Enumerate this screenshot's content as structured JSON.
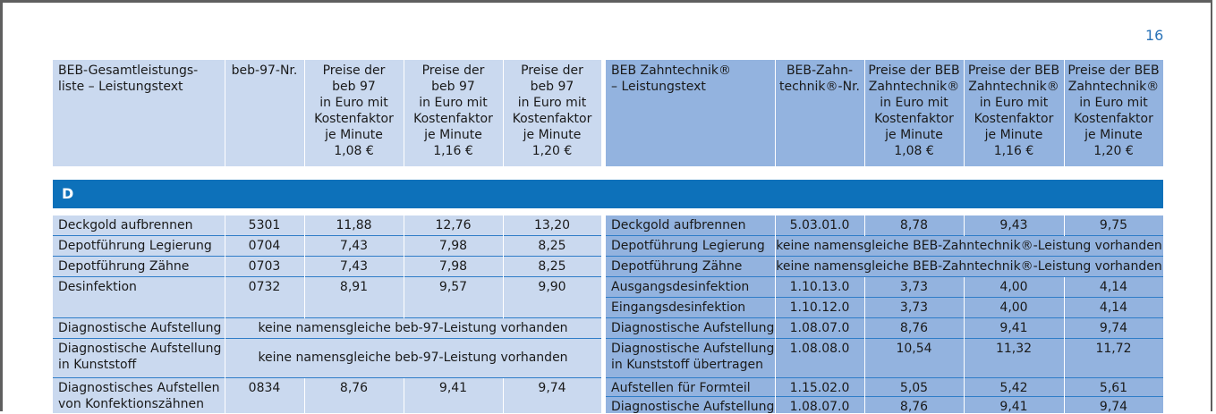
{
  "page_number": "16",
  "left_header": {
    "col1": [
      "BEB-Gesamtleistungs-",
      "liste – Leistungstext"
    ],
    "col2": [
      "beb-97-Nr."
    ],
    "col3": [
      "Preise der",
      "beb 97",
      "in Euro mit",
      "Kostenfaktor",
      "je Minute",
      "1,08 €"
    ],
    "col4": [
      "Preise der",
      "beb 97",
      "in Euro mit",
      "Kostenfaktor",
      "je Minute",
      "1,16 €"
    ],
    "col5": [
      "Preise der",
      "beb 97",
      "in Euro mit",
      "Kostenfaktor",
      "je Minute",
      "1,20 €"
    ]
  },
  "right_header": {
    "col1": [
      "BEB Zahntechnik®",
      "– Leistungstext"
    ],
    "col2": [
      "BEB-Zahn-",
      "technik®-Nr."
    ],
    "col3": [
      "Preise der BEB",
      "Zahntechnik®",
      "in Euro mit",
      "Kostenfaktor",
      "je Minute",
      "1,08 €"
    ],
    "col4": [
      "Preise der BEB",
      "Zahntechnik®",
      "in Euro mit",
      "Kostenfaktor",
      "je Minute",
      "1,16 €"
    ],
    "col5": [
      "Preise der BEB",
      "Zahntechnik®",
      "in Euro mit",
      "Kostenfaktor",
      "je Minute",
      "1,20 €"
    ]
  },
  "section_letter": "D",
  "left_rows": [
    {
      "text": [
        "Deckgold aufbrennen"
      ],
      "nr": "5301",
      "p108": "11,88",
      "p116": "12,76",
      "p120": "13,20"
    },
    {
      "text": [
        "Depotführung Legierung"
      ],
      "nr": "0704",
      "p108": "7,43",
      "p116": "7,98",
      "p120": "8,25"
    },
    {
      "text": [
        "Depotführung Zähne"
      ],
      "nr": "0703",
      "p108": "7,43",
      "p116": "7,98",
      "p120": "8,25"
    },
    {
      "text": [
        "Desinfektion"
      ],
      "nr": "0732",
      "p108": "8,91",
      "p116": "9,57",
      "p120": "9,90"
    },
    {
      "text": [
        "Diagnostische Aufstellung"
      ],
      "note": "keine namensgleiche beb-97-Leistung vorhanden"
    },
    {
      "text": [
        "Diagnostische Aufstellung",
        "in Kunststoff"
      ],
      "note": "keine namensgleiche beb-97-Leistung vorhanden"
    },
    {
      "text": [
        "Diagnostisches Aufstellen",
        "von Konfektionszähnen"
      ],
      "nr": "0834",
      "p108": "8,76",
      "p116": "9,41",
      "p120": "9,74"
    }
  ],
  "right_rows": [
    {
      "text": [
        "Deckgold aufbrennen"
      ],
      "nr": "5.03.01.0",
      "p108": "8,78",
      "p116": "9,43",
      "p120": "9,75"
    },
    {
      "text": [
        "Depotführung Legierung"
      ],
      "note": "keine namensgleiche BEB-Zahntechnik®-Leistung vorhanden"
    },
    {
      "text": [
        "Depotführung Zähne"
      ],
      "note": "keine namensgleiche BEB-Zahntechnik®-Leistung vorhanden"
    },
    {
      "text": [
        "Ausgangsdesinfektion"
      ],
      "nr": "1.10.13.0",
      "p108": "3,73",
      "p116": "4,00",
      "p120": "4,14"
    },
    {
      "text": [
        "Eingangsdesinfektion"
      ],
      "nr": "1.10.12.0",
      "p108": "3,73",
      "p116": "4,00",
      "p120": "4,14"
    },
    {
      "text": [
        "Diagnostische Aufstellung"
      ],
      "nr": "1.08.07.0",
      "p108": "8,76",
      "p116": "9,41",
      "p120": "9,74"
    },
    {
      "text": [
        "Diagnostische Aufstellung",
        "in Kunststoff übertragen"
      ],
      "nr": "1.08.08.0",
      "p108": "10,54",
      "p116": "11,32",
      "p120": "11,72"
    },
    {
      "text": [
        "Aufstellen für Formteil"
      ],
      "nr": "1.15.02.0",
      "p108": "5,05",
      "p116": "5,42",
      "p120": "5,61"
    },
    {
      "text": [
        "Diagnostische Aufstellung"
      ],
      "nr": "1.08.07.0",
      "p108": "8,76",
      "p116": "9,41",
      "p120": "9,74"
    }
  ]
}
